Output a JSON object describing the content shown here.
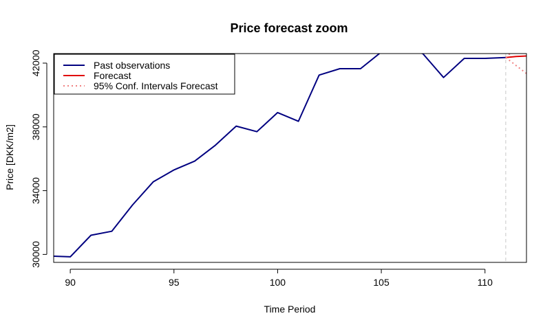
{
  "chart_data": {
    "type": "line",
    "title": "Price forecast zoom",
    "xlabel": "Time Period",
    "ylabel": "Price [DKK/m2]",
    "xlim": [
      89.2,
      112
    ],
    "ylim": [
      29500,
      42600
    ],
    "x_ticks": [
      90,
      95,
      100,
      105,
      110
    ],
    "y_ticks": [
      30000,
      34000,
      38000,
      42000
    ],
    "grid": false,
    "legend_position": "top-left",
    "forecast_origin_line": {
      "x": 111,
      "style": "dashed",
      "color": "#c8c8c8"
    },
    "series": [
      {
        "name": "Past observations",
        "color": "#000080",
        "style": "solid",
        "x": [
          89,
          90,
          91,
          92,
          93,
          94,
          95,
          96,
          97,
          98,
          99,
          100,
          101,
          102,
          103,
          104,
          105,
          106,
          107,
          108,
          109,
          110,
          111
        ],
        "values": [
          29900,
          29850,
          31200,
          31450,
          33100,
          34550,
          35300,
          35850,
          36850,
          38050,
          37700,
          38900,
          38350,
          41250,
          41650,
          41650,
          42700,
          42900,
          42600,
          41100,
          42300,
          42300,
          42350
        ]
      },
      {
        "name": "Forecast",
        "color": "#e00000",
        "style": "solid",
        "x": [
          111,
          111.5,
          112
        ],
        "values": [
          42350,
          42420,
          42450
        ]
      },
      {
        "name": "95% Conf. Intervals Forecast",
        "color": "#f08080",
        "style": "dotted",
        "upper": {
          "x": [
            111,
            111.5,
            112
          ],
          "values": [
            42350,
            42950,
            43450
          ]
        },
        "lower": {
          "x": [
            111,
            111.5,
            112
          ],
          "values": [
            42350,
            41850,
            41350
          ]
        }
      }
    ]
  }
}
